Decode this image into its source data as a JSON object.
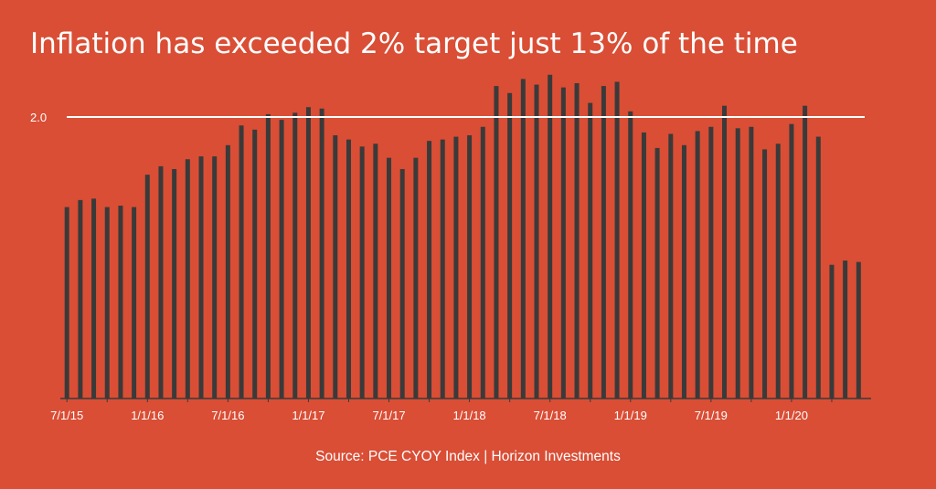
{
  "title": "Inflation has exceeded 2% target just 13% of the time",
  "source": "Source: PCE CYOY Index | Horizon Investments",
  "colors": {
    "background": "#D94E35",
    "bar": "#3A3A3A",
    "reference_line": "#FFFFFF",
    "text": "#FFFFFF"
  },
  "chart_data": {
    "type": "bar",
    "title": "Inflation has exceeded 2% target just 13% of the time",
    "xlabel": "",
    "ylabel": "",
    "ylim": [
      0,
      2.2
    ],
    "reference_line": {
      "value": 2.0,
      "label": "2.0"
    },
    "x_tick_labels": [
      {
        "index": 0,
        "label": "7/1/15"
      },
      {
        "index": 6,
        "label": "1/1/16"
      },
      {
        "index": 12,
        "label": "7/1/16"
      },
      {
        "index": 18,
        "label": "1/1/17"
      },
      {
        "index": 24,
        "label": "7/1/17"
      },
      {
        "index": 30,
        "label": "1/1/18"
      },
      {
        "index": 36,
        "label": "7/1/18"
      },
      {
        "index": 42,
        "label": "1/1/19"
      },
      {
        "index": 48,
        "label": "7/1/19"
      },
      {
        "index": 54,
        "label": "1/1/20"
      }
    ],
    "values": [
      1.36,
      1.41,
      1.42,
      1.36,
      1.37,
      1.36,
      1.59,
      1.65,
      1.63,
      1.7,
      1.72,
      1.72,
      1.8,
      1.94,
      1.91,
      2.02,
      1.98,
      2.03,
      2.07,
      2.06,
      1.87,
      1.84,
      1.79,
      1.81,
      1.71,
      1.63,
      1.71,
      1.83,
      1.84,
      1.86,
      1.87,
      1.93,
      2.22,
      2.17,
      2.27,
      2.23,
      2.3,
      2.21,
      2.24,
      2.1,
      2.22,
      2.25,
      2.04,
      1.89,
      1.78,
      1.88,
      1.8,
      1.9,
      1.93,
      2.08,
      1.92,
      1.93,
      1.77,
      1.81,
      1.95,
      2.08,
      1.86,
      0.95,
      0.98,
      0.97
    ],
    "grid": false
  }
}
